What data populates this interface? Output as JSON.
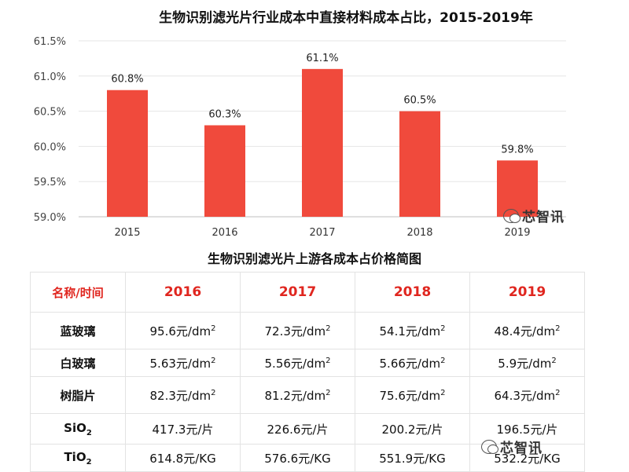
{
  "chart_data": [
    {
      "type": "bar",
      "title": "生物识别滤光片行业成本中直接材料成本占比，2015-2019年",
      "categories": [
        "2015",
        "2016",
        "2017",
        "2018",
        "2019"
      ],
      "values": [
        60.8,
        60.3,
        61.1,
        60.5,
        59.8
      ],
      "data_labels": [
        "60.8%",
        "60.3%",
        "61.1%",
        "60.5%",
        "59.8%"
      ],
      "ylim": [
        59.0,
        61.5
      ],
      "yticks": [
        59.0,
        59.5,
        60.0,
        60.5,
        61.0,
        61.5
      ],
      "ytick_labels": [
        "59.0%",
        "59.5%",
        "60.0%",
        "60.5%",
        "61.0%",
        "61.5%"
      ],
      "xlabel": "",
      "ylabel": "",
      "bar_color": "#f04a3c"
    },
    {
      "type": "table",
      "title": "生物识别滤光片上游各成本占价格简图",
      "header": [
        "名称/时间",
        "2016",
        "2017",
        "2018",
        "2019"
      ],
      "rows": [
        {
          "name": "蓝玻璃",
          "sub": "",
          "unit": "元/dm",
          "sup": "2",
          "values": [
            "95.6",
            "72.3",
            "54.1",
            "48.4"
          ]
        },
        {
          "name": "白玻璃",
          "sub": "",
          "unit": "元/dm",
          "sup": "2",
          "values": [
            "5.63",
            "5.56",
            "5.66",
            "5.9"
          ]
        },
        {
          "name": "树脂片",
          "sub": "",
          "unit": "元/dm",
          "sup": "2",
          "values": [
            "82.3",
            "81.2",
            "75.6",
            "64.3"
          ]
        },
        {
          "name": "SiO",
          "sub": "2",
          "unit": "元/片",
          "sup": "",
          "values": [
            "417.3",
            "226.6",
            "200.2",
            "196.5"
          ]
        },
        {
          "name": "TiO",
          "sub": "2",
          "unit": "元/KG",
          "sup": "",
          "values": [
            "614.8",
            "576.6",
            "551.9",
            "532.2"
          ]
        }
      ],
      "header_color": "#e0261f"
    }
  ],
  "watermark": {
    "text": "芯智讯",
    "icon": "wechat-icon"
  }
}
